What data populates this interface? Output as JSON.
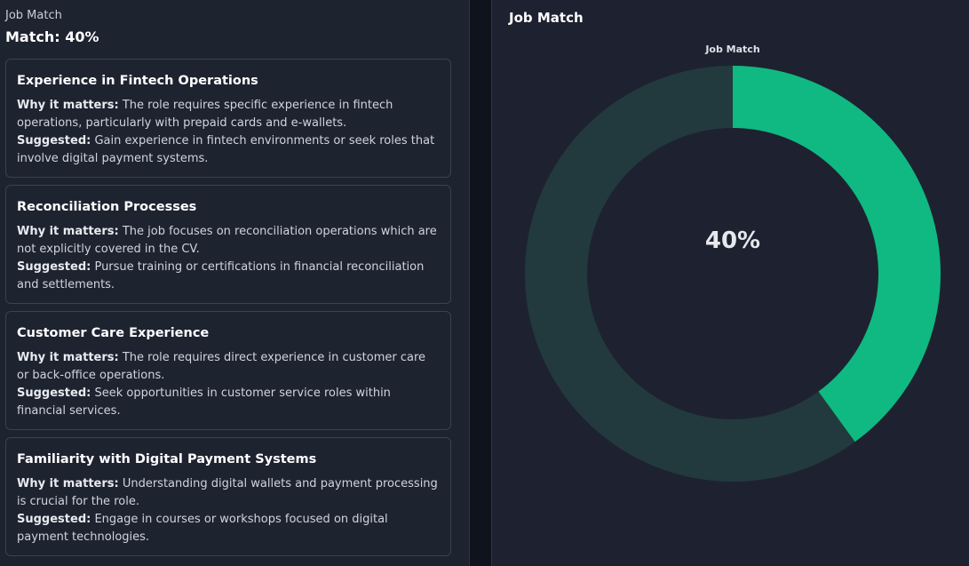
{
  "left": {
    "header": "Job Match",
    "match_title": "Match: 40%",
    "cards": [
      {
        "title": "Experience in Fintech Operations",
        "why_label": "Why it matters:",
        "why_text": " The role requires specific experience in fintech operations, particularly with prepaid cards and e-wallets.",
        "suggested_label": "Suggested:",
        "suggested_text": " Gain experience in fintech environments or seek roles that involve digital payment systems."
      },
      {
        "title": "Reconciliation Processes",
        "why_label": "Why it matters:",
        "why_text": " The job focuses on reconciliation operations which are not explicitly covered in the CV.",
        "suggested_label": "Suggested:",
        "suggested_text": " Pursue training or certifications in financial reconciliation and settlements."
      },
      {
        "title": "Customer Care Experience",
        "why_label": "Why it matters:",
        "why_text": " The role requires direct experience in customer care or back-office operations.",
        "suggested_label": "Suggested:",
        "suggested_text": " Seek opportunities in customer service roles within financial services."
      },
      {
        "title": "Familiarity with Digital Payment Systems",
        "why_label": "Why it matters:",
        "why_text": " Understanding digital wallets and payment processing is crucial for the role.",
        "suggested_label": "Suggested:",
        "suggested_text": " Engage in courses or workshops focused on digital payment technologies."
      }
    ]
  },
  "right": {
    "title": "Job Match",
    "chart_label": "Job Match",
    "center_value": "40%"
  },
  "chart_data": {
    "type": "pie",
    "donut": true,
    "title": "Job Match",
    "slices": [
      {
        "value": 40,
        "color": "#10b981"
      },
      {
        "value": 60,
        "color": "#223a3d"
      }
    ],
    "center_text": "40%"
  }
}
